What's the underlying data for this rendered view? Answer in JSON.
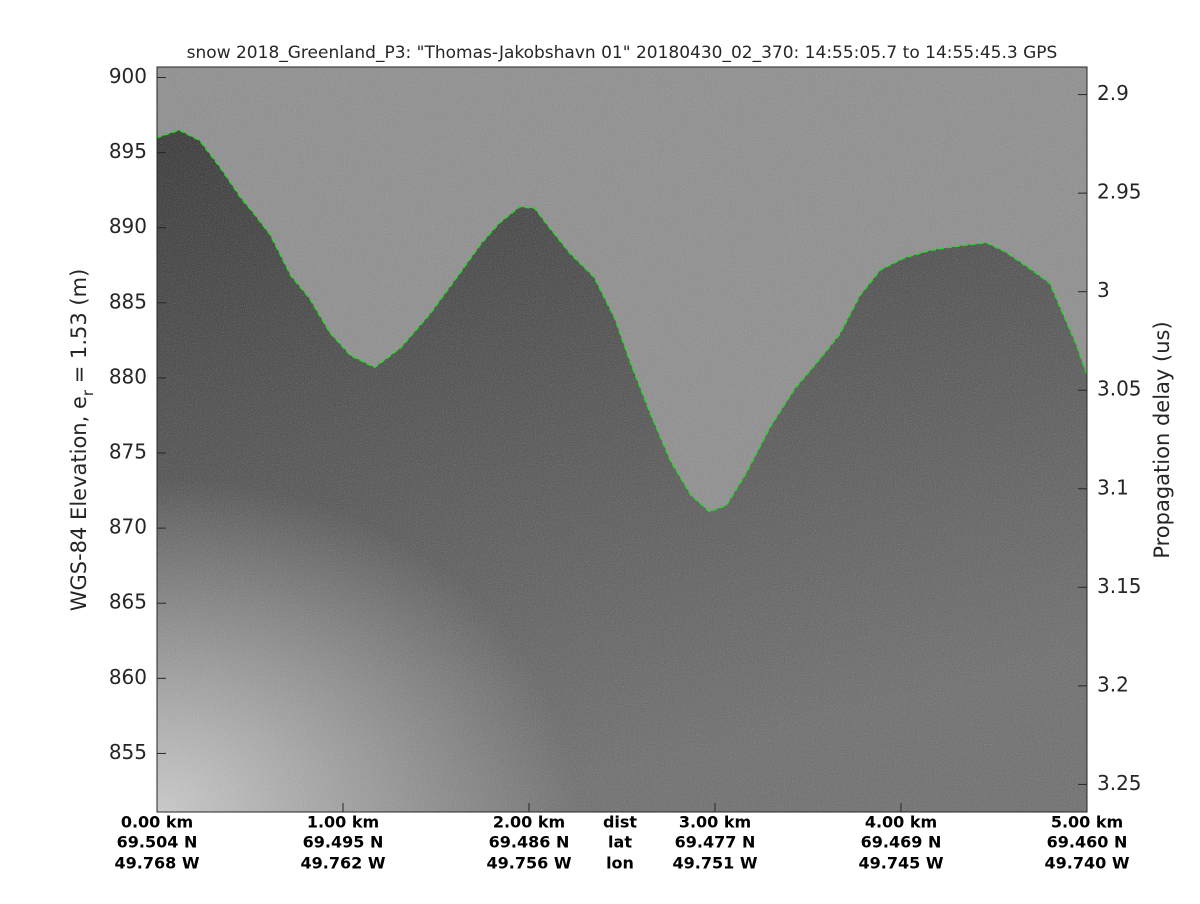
{
  "chart_data": {
    "type": "line",
    "title": "snow 2018_Greenland_P3: \"Thomas-Jakobshavn 01\"  20180430_02_370: 14:55:05.7 to 14:55:45.3 GPS",
    "ylabel": [
      "WGS-84 Elevation, e",
      "r",
      " = 1.53 (m)"
    ],
    "y2label": "Propagation delay (us)",
    "x": [
      0.0,
      0.12,
      0.23,
      0.34,
      0.45,
      0.53,
      0.61,
      0.72,
      0.82,
      0.93,
      1.04,
      1.17,
      1.31,
      1.47,
      1.63,
      1.74,
      1.84,
      1.95,
      2.03,
      2.11,
      2.22,
      2.35,
      2.46,
      2.54,
      2.65,
      2.76,
      2.87,
      2.97,
      3.06,
      3.16,
      3.3,
      3.43,
      3.56,
      3.67,
      3.78,
      3.89,
      4.02,
      4.16,
      4.32,
      4.46,
      4.56,
      4.69,
      4.8,
      4.88,
      4.94,
      5.0
    ],
    "series": [
      {
        "color": "#22dd22",
        "values": [
          896.0,
          896.5,
          895.8,
          894.0,
          892.0,
          890.8,
          889.5,
          886.8,
          885.3,
          883.0,
          881.5,
          880.7,
          882.0,
          884.3,
          887.0,
          888.9,
          890.3,
          891.4,
          891.3,
          890.0,
          888.3,
          886.7,
          884.0,
          881.2,
          877.7,
          874.5,
          872.2,
          871.1,
          871.5,
          873.5,
          876.8,
          879.3,
          881.2,
          882.9,
          885.5,
          887.2,
          888.0,
          888.5,
          888.8,
          889.0,
          888.4,
          887.3,
          886.3,
          884.0,
          882.3,
          880.2
        ]
      }
    ],
    "xlim": [
      0,
      5
    ],
    "xticks": [
      {
        "value": 0,
        "label": "0.00 km"
      },
      {
        "value": 1,
        "label": "1.00 km"
      },
      {
        "value": 2,
        "label": "2.00 km"
      },
      {
        "value": 3,
        "label": "3.00 km"
      },
      {
        "value": 4,
        "label": "4.00 km"
      },
      {
        "value": 5,
        "label": "5.00 km"
      }
    ],
    "xtick_lat": [
      "69.504 N",
      "69.495 N",
      "69.486 N",
      "69.477 N",
      "69.469 N",
      "69.460 N"
    ],
    "xtick_lon": [
      "49.768 W",
      "49.762 W",
      "49.756 W",
      "49.751 W",
      "49.745 W",
      "49.740 W"
    ],
    "row_names": [
      "dist",
      "lat",
      "lon"
    ],
    "ylim": [
      851.1,
      900.7
    ],
    "yticks": [
      855,
      860,
      865,
      870,
      875,
      880,
      885,
      890,
      895,
      900
    ],
    "y2lim": [
      3.264,
      2.886
    ],
    "y2ticks": [
      2.9,
      2.95,
      3,
      3.05,
      3.1,
      3.15,
      3.2,
      3.25
    ]
  }
}
